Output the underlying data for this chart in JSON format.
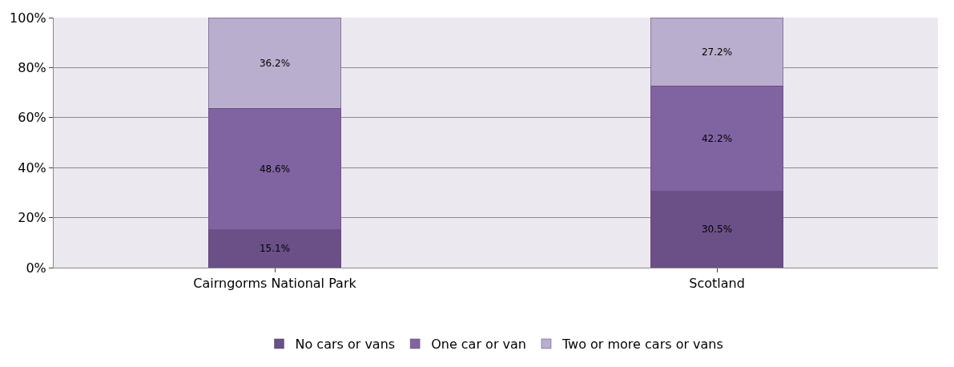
{
  "chart_data": {
    "type": "bar",
    "stacked": true,
    "categories": [
      "Cairngorms National Park",
      "Scotland"
    ],
    "series": [
      {
        "name": "No cars or vans",
        "color": "#6a5087",
        "values": [
          15.1,
          30.5
        ],
        "value_labels": [
          "15.1%",
          "30.5%"
        ]
      },
      {
        "name": "One car or van",
        "color": "#8064a2",
        "values": [
          48.6,
          42.2
        ],
        "value_labels": [
          "48.6%",
          "42.2%"
        ]
      },
      {
        "name": "Two or more cars or vans",
        "color": "#b9aecd",
        "values": [
          36.2,
          27.2
        ],
        "value_labels": [
          "36.2%",
          "27.2%"
        ]
      }
    ],
    "ylim": [
      0,
      100
    ],
    "yticks": [
      {
        "value": 0,
        "label": "0%"
      },
      {
        "value": 20,
        "label": "20%"
      },
      {
        "value": 40,
        "label": "40%"
      },
      {
        "value": 60,
        "label": "60%"
      },
      {
        "value": 80,
        "label": "80%"
      },
      {
        "value": 100,
        "label": "100%"
      }
    ],
    "grid": "y",
    "legend": "bottom"
  }
}
